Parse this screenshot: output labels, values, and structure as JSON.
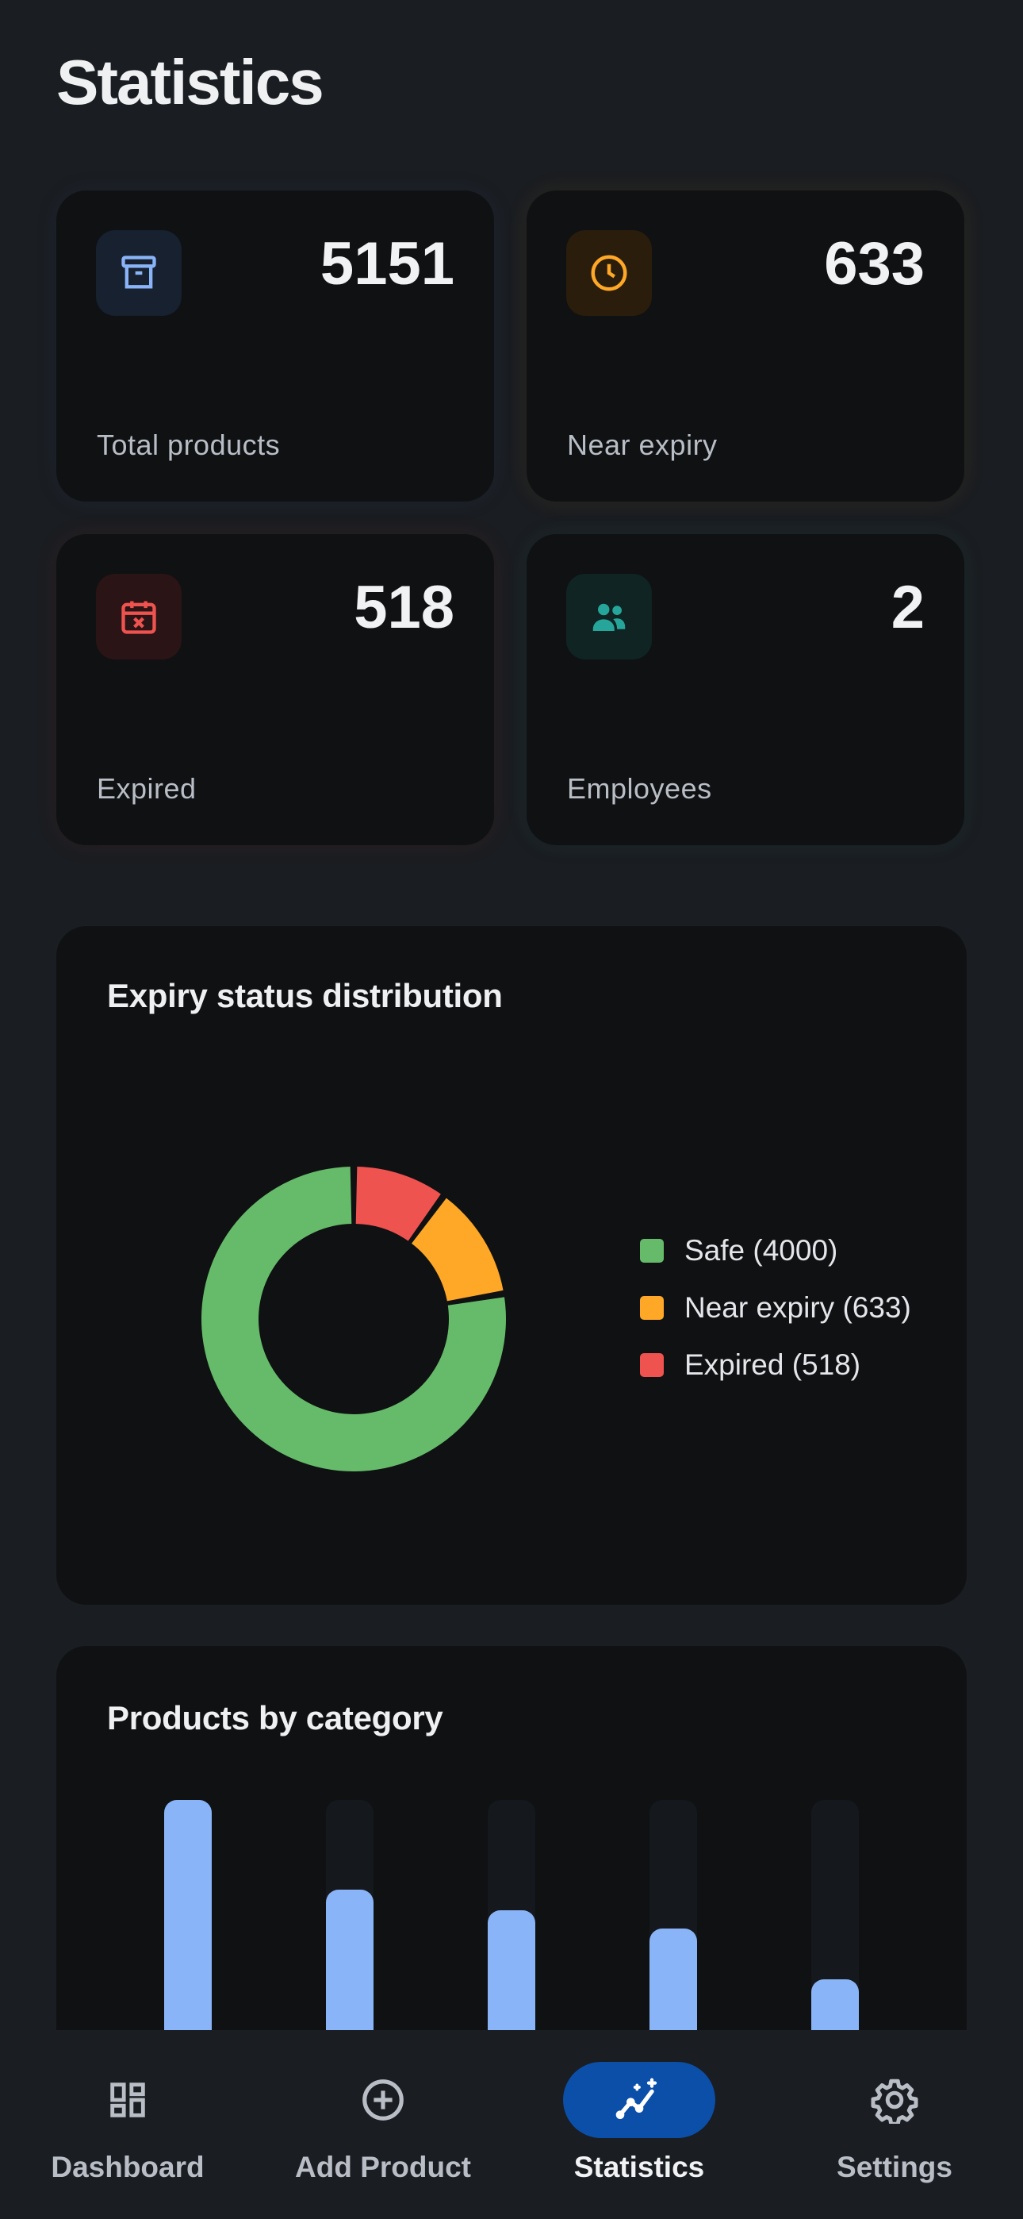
{
  "page": {
    "title": "Statistics"
  },
  "stats": [
    {
      "value": "5151",
      "label": "Total products",
      "icon": "archive-icon",
      "color": "#8ab4f8"
    },
    {
      "value": "633",
      "label": "Near expiry",
      "icon": "clock-icon",
      "color": "#ffa726"
    },
    {
      "value": "518",
      "label": "Expired",
      "icon": "calendar-x-icon",
      "color": "#ef5350"
    },
    {
      "value": "2",
      "label": "Employees",
      "icon": "people-icon",
      "color": "#26a69a"
    }
  ],
  "expiry_chart": {
    "title": "Expiry status distribution",
    "legend": [
      "Safe (4000)",
      "Near expiry (633)",
      "Expired (518)"
    ]
  },
  "category_chart": {
    "title": "Products by category"
  },
  "chart_data": [
    {
      "type": "pie",
      "title": "Expiry status distribution",
      "labels": [
        "Safe",
        "Near expiry",
        "Expired"
      ],
      "values": [
        4000,
        633,
        518
      ],
      "colors": [
        "#66bb6a",
        "#ffa726",
        "#ef5350"
      ],
      "legend": "right"
    },
    {
      "type": "bar",
      "title": "Products by category",
      "categories": [
        "",
        "",
        "",
        "",
        ""
      ],
      "values": [
        100,
        61,
        52,
        44,
        22
      ],
      "ylim": [
        0,
        100
      ],
      "colors": [
        "#8ab4f8"
      ]
    }
  ],
  "nav": {
    "items": [
      {
        "label": "Dashboard",
        "icon": "dashboard-icon"
      },
      {
        "label": "Add Product",
        "icon": "add-circle-icon"
      },
      {
        "label": "Statistics",
        "icon": "statistics-icon",
        "active": true
      },
      {
        "label": "Settings",
        "icon": "gear-icon"
      }
    ]
  }
}
